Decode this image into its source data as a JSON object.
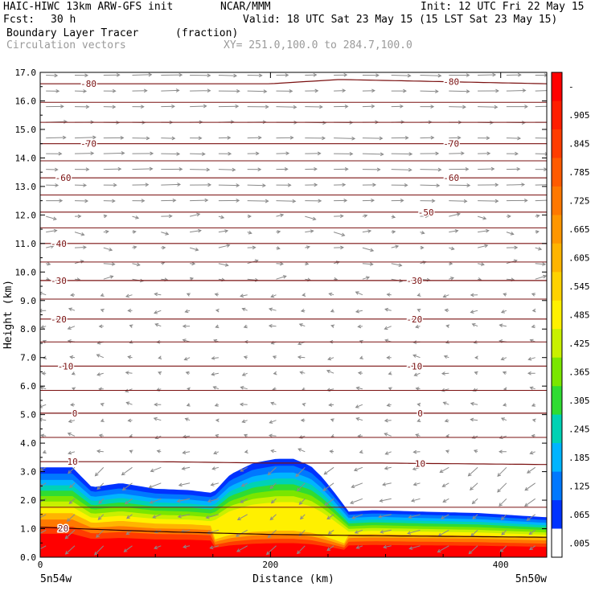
{
  "header": {
    "model": "HAIC-HIWC 13km ARW-GFS init",
    "org": "NCAR/MMM",
    "init": "Init: 12 UTC Fri 22 May 15",
    "fcst_label": "Fcst:",
    "fcst_value": "30 h",
    "valid": "Valid: 18 UTC Sat 23 May 15 (15 LST Sat 23 May 15)",
    "field_name": "Boundary Layer Tracer",
    "field_units": "(fraction)",
    "vector_label": "Circulation vectors",
    "xy_range": "XY= 251.0,100.0 to 284.7,100.0"
  },
  "chart_data": {
    "type": "heatmap",
    "title": "Boundary Layer Tracer",
    "xlabel": "Distance (km)",
    "ylabel": "Height (km)",
    "xlim": [
      0,
      440
    ],
    "ylim": [
      0.0,
      17.0
    ],
    "x_ticks": [
      0,
      200,
      400
    ],
    "y_ticks": [
      "0.0",
      "1.0",
      "2.0",
      "3.0",
      "4.0",
      "5.0",
      "6.0",
      "7.0",
      "8.0",
      "9.0",
      "10.0",
      "11.0",
      "12.0",
      "13.0",
      "14.0",
      "15.0",
      "16.0",
      "17.0"
    ],
    "x_endpoint_labels": [
      "5n54w",
      "5n50w"
    ],
    "colorbar": {
      "labels": [
        "-",
        ".905",
        ".845",
        ".785",
        ".725",
        ".665",
        ".605",
        ".545",
        ".485",
        ".425",
        ".365",
        ".305",
        ".245",
        ".185",
        ".125",
        ".065",
        ".005"
      ],
      "colors": [
        "#ff0000",
        "#ff1e00",
        "#ff3c00",
        "#ff5a00",
        "#ff7800",
        "#ff9600",
        "#ffb400",
        "#ffd200",
        "#fff000",
        "#c8f000",
        "#7ae600",
        "#2fdc32",
        "#00d2b4",
        "#00b4ff",
        "#0078ff",
        "#0032ff",
        "#ffffff"
      ]
    },
    "tracer_top_km": {
      "x": [
        0,
        28,
        45,
        70,
        100,
        130,
        150,
        165,
        185,
        205,
        220,
        235,
        245,
        255,
        268,
        290,
        330,
        380,
        420,
        440
      ],
      "y": [
        3.15,
        3.15,
        2.45,
        2.6,
        2.4,
        2.35,
        2.25,
        2.9,
        3.3,
        3.45,
        3.45,
        3.2,
        2.8,
        2.3,
        1.6,
        1.65,
        1.6,
        1.55,
        1.45,
        1.4
      ]
    },
    "temperature_contours": [
      {
        "label": "20",
        "label_x": 20,
        "x": [
          0,
          100,
          200,
          300,
          440
        ],
        "y": [
          1.05,
          0.9,
          0.8,
          0.75,
          0.7
        ]
      },
      {
        "label": "10",
        "label_x": 28,
        "label_x2": 330,
        "x": [
          0,
          100,
          200,
          300,
          440
        ],
        "y": [
          3.35,
          3.35,
          3.3,
          3.3,
          3.25
        ]
      },
      {
        "label": "0",
        "label_x": 30,
        "label_x2": 330,
        "x": [
          0,
          440
        ],
        "y": [
          5.05,
          5.05
        ]
      },
      {
        "label": "-10",
        "label_x": 22,
        "label_x2": 325,
        "x": [
          0,
          440
        ],
        "y": [
          6.7,
          6.7
        ]
      },
      {
        "label": "-20",
        "label_x": 16,
        "label_x2": 325,
        "x": [
          0,
          440
        ],
        "y": [
          8.35,
          8.35
        ]
      },
      {
        "label": "-30",
        "label_x": 16,
        "label_x2": 325,
        "x": [
          0,
          440
        ],
        "y": [
          9.7,
          9.7
        ]
      },
      {
        "label": "-40",
        "label_x": 16,
        "x": [
          0,
          440
        ],
        "y": [
          11.0,
          11.0
        ]
      },
      {
        "label": "-50",
        "label_x2": 335,
        "x": [
          0,
          440
        ],
        "y": [
          12.1,
          12.1
        ]
      },
      {
        "label": "-60",
        "label_x": 20,
        "label_x2": 357,
        "x": [
          0,
          440
        ],
        "y": [
          13.3,
          13.3
        ]
      },
      {
        "label": "-70",
        "label_x": 42,
        "label_x2": 357,
        "x": [
          0,
          440
        ],
        "y": [
          14.5,
          14.5
        ]
      },
      {
        "label": "-80",
        "label_x": 42,
        "label_x2": 357,
        "x": [
          0,
          200,
          260,
          440
        ],
        "y": [
          16.6,
          16.6,
          16.75,
          16.6
        ]
      }
    ]
  }
}
